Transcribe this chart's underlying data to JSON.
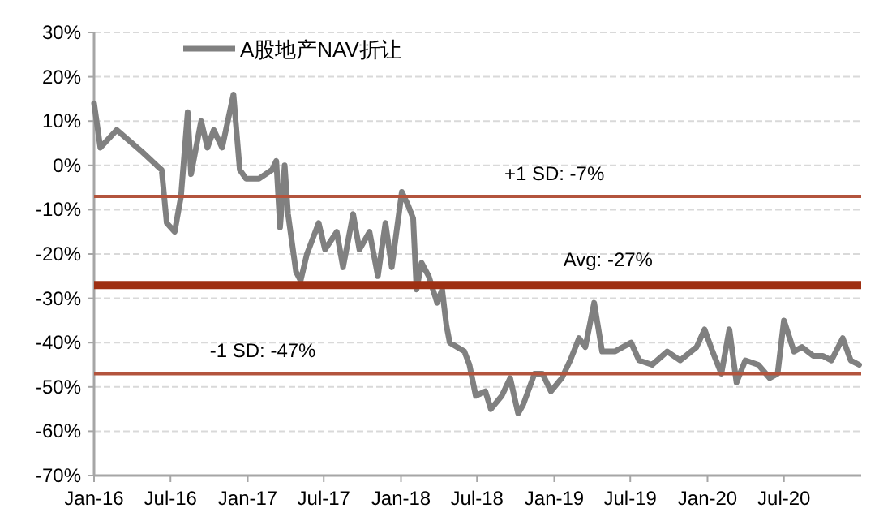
{
  "chart_data": {
    "type": "line",
    "legend": "top left",
    "grid": "y",
    "marker": "none",
    "line_style": "solid",
    "xlim": [
      "2016-01-01",
      "2021-01-01"
    ],
    "xticks": [
      {
        "value": "2016-01-01",
        "label": "Jan-16"
      },
      {
        "value": "2016-07-01",
        "label": "Jul-16"
      },
      {
        "value": "2017-01-01",
        "label": "Jan-17"
      },
      {
        "value": "2017-07-01",
        "label": "Jul-17"
      },
      {
        "value": "2018-01-01",
        "label": "Jan-18"
      },
      {
        "value": "2018-07-01",
        "label": "Jul-18"
      },
      {
        "value": "2019-01-01",
        "label": "Jan-19"
      },
      {
        "value": "2019-07-01",
        "label": "Jul-19"
      },
      {
        "value": "2020-01-01",
        "label": "Jan-20"
      },
      {
        "value": "2020-07-01",
        "label": "Jul-20"
      }
    ],
    "ylim": [
      -70,
      30
    ],
    "yticks": [
      {
        "value": 30,
        "label": "30%"
      },
      {
        "value": 20,
        "label": "20%"
      },
      {
        "value": 10,
        "label": "10%"
      },
      {
        "value": 0,
        "label": "0%"
      },
      {
        "value": -10,
        "label": "-10%"
      },
      {
        "value": -20,
        "label": "-20%"
      },
      {
        "value": -30,
        "label": "-30%"
      },
      {
        "value": -40,
        "label": "-40%"
      },
      {
        "value": -50,
        "label": "-50%"
      },
      {
        "value": -60,
        "label": "-60%"
      },
      {
        "value": -70,
        "label": "-70%"
      }
    ],
    "ref_lines": [
      {
        "axis": "y",
        "value": -7,
        "label": "+1 SD: -7%",
        "color": "#b3543d"
      },
      {
        "axis": "y",
        "value": -27,
        "label": "Avg: -27%",
        "color": "#9e2f12"
      },
      {
        "axis": "y",
        "value": -47,
        "label": "-1 SD: -47%",
        "color": "#b3543d"
      }
    ],
    "series": [
      {
        "name": "A股地产NAV折让",
        "color": "#808080",
        "x": [
          "2016-01-01",
          "2016-01-16",
          "2016-02-24",
          "2016-04-25",
          "2016-05-29",
          "2016-06-10",
          "2016-06-22",
          "2016-07-11",
          "2016-07-26",
          "2016-08-11",
          "2016-08-19",
          "2016-09-12",
          "2016-09-27",
          "2016-10-12",
          "2016-11-01",
          "2016-11-28",
          "2016-12-13",
          "2016-12-28",
          "2017-01-28",
          "2017-02-28",
          "2017-03-10",
          "2017-03-19",
          "2017-03-30",
          "2017-04-07",
          "2017-04-26",
          "2017-05-07",
          "2017-05-22",
          "2017-06-19",
          "2017-07-04",
          "2017-08-01",
          "2017-08-16",
          "2017-09-09",
          "2017-09-24",
          "2017-10-18",
          "2017-11-07",
          "2017-11-25",
          "2017-12-10",
          "2018-01-03",
          "2018-01-18",
          "2018-01-30",
          "2018-02-07",
          "2018-02-19",
          "2018-03-08",
          "2018-03-28",
          "2018-04-09",
          "2018-04-19",
          "2018-04-27",
          "2018-06-01",
          "2018-06-13",
          "2018-06-28",
          "2018-07-21",
          "2018-08-03",
          "2018-08-29",
          "2018-09-18",
          "2018-10-07",
          "2018-10-19",
          "2018-11-15",
          "2018-12-04",
          "2018-12-24",
          "2019-01-19",
          "2019-02-08",
          "2019-03-01",
          "2019-03-16",
          "2019-04-06",
          "2019-04-25",
          "2019-05-25",
          "2019-07-03",
          "2019-07-22",
          "2019-08-22",
          "2019-09-27",
          "2019-10-28",
          "2019-12-06",
          "2019-12-25",
          "2020-01-13",
          "2020-02-03",
          "2020-02-22",
          "2020-03-10",
          "2020-03-31",
          "2020-05-01",
          "2020-05-28",
          "2020-06-16",
          "2020-07-01",
          "2020-07-25",
          "2020-08-13",
          "2020-09-09",
          "2020-10-02",
          "2020-10-22",
          "2020-11-18",
          "2020-12-07",
          "2020-12-27"
        ],
        "values": [
          14,
          4,
          8,
          3,
          0,
          -1,
          -13,
          -15,
          -7,
          12,
          -2,
          10,
          4,
          8,
          4,
          16,
          -1,
          -3,
          -3,
          -1,
          1,
          -14,
          0,
          -11,
          -24,
          -26,
          -20,
          -13,
          -19,
          -15,
          -23,
          -11,
          -19,
          -15,
          -25,
          -13,
          -23,
          -6,
          -9,
          -12,
          -28,
          -22,
          -25,
          -31,
          -28,
          -36,
          -40,
          -42,
          -45,
          -52,
          -51,
          -55,
          -52,
          -48,
          -56,
          -54,
          -47,
          -47,
          -51,
          -48,
          -44,
          -39,
          -41,
          -31,
          -42,
          -42,
          -40,
          -44,
          -45,
          -42,
          -44,
          -41,
          -37,
          -42,
          -47,
          -37,
          -49,
          -44,
          -45,
          -48,
          -47,
          -35,
          -42,
          -41,
          -43,
          -43,
          -44,
          -39,
          -44,
          -45
        ]
      }
    ]
  }
}
